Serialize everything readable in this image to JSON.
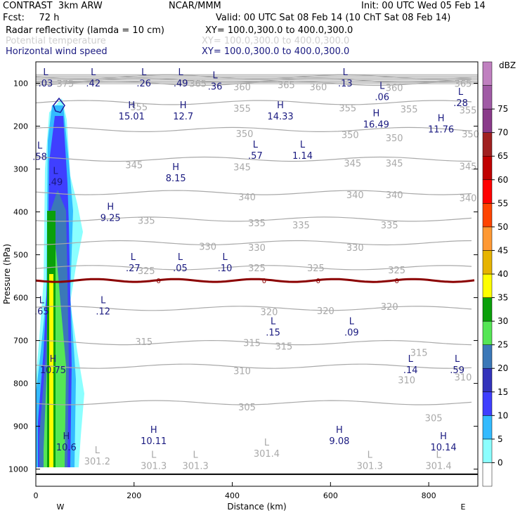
{
  "header": {
    "line1_left": "CONTRAST  3km ARW",
    "line1_mid": "NCAR/MMM",
    "line1_right": "Init: 00 UTC Wed 05 Feb 14",
    "line2_left": "Fcst:     72 h",
    "line2_right": "Valid: 00 UTC Sat 08 Feb 14 (10 ChT Sat 08 Feb 14)",
    "field1_name": "Radar reflectivity (lamda = 10 cm)",
    "field1_xy": "XY= 100.0,300.0 to 400.0,300.0",
    "field2_name": "Potential temperature",
    "field2_xy": "XY= 100.0,300.0 to 400.0,300.0",
    "field3_name": "Horizontal wind speed",
    "field3_xy": "XY= 100.0,300.0 to 400.0,300.0"
  },
  "colors": {
    "theta": "#a9a9a9",
    "wind": "#1a1a80",
    "freezing_line": "#8b0000"
  },
  "chart_data": {
    "type": "contour-cross-section",
    "xlabel": "Distance (km)",
    "ylabel": "Pressure (hPa)",
    "xlim": [
      0,
      900
    ],
    "ylim": [
      1040,
      50
    ],
    "x_ticks": [
      0,
      200,
      400,
      600,
      800
    ],
    "y_ticks": [
      100,
      200,
      300,
      400,
      500,
      600,
      700,
      800,
      900,
      1000
    ],
    "x_end_labels": {
      "left": "W",
      "right": "E"
    },
    "colorbar": {
      "unit": "dBZ",
      "levels": [
        0,
        5,
        10,
        15,
        20,
        25,
        30,
        35,
        40,
        45,
        50,
        55,
        60,
        65,
        70,
        75
      ],
      "colors": [
        "#ffffff",
        "#8bffff",
        "#33bbff",
        "#3f3fff",
        "#3333bb",
        "#3b78b8",
        "#55e655",
        "#0aa00a",
        "#ffff00",
        "#e6b400",
        "#ff9933",
        "#ff4400",
        "#ff0000",
        "#c00000",
        "#a02020",
        "#8a3a8a",
        "#a05aa5",
        "#c080c0"
      ]
    },
    "theta_contours": [
      {
        "label": "375",
        "p": 85
      },
      {
        "label": "365",
        "p": 93
      },
      {
        "label": "360",
        "p": 100
      },
      {
        "label": "355",
        "p": 145
      },
      {
        "label": "350",
        "p": 208
      },
      {
        "label": "345",
        "p": 277
      },
      {
        "label": "340",
        "p": 355
      },
      {
        "label": "335",
        "p": 417
      },
      {
        "label": "330",
        "p": 472
      },
      {
        "label": "325",
        "p": 530
      },
      {
        "label": "320",
        "p": 625
      },
      {
        "label": "315",
        "p": 705
      },
      {
        "label": "310",
        "p": 760
      },
      {
        "label": "305",
        "p": 845
      }
    ],
    "theta_labels": [
      {
        "text": "375",
        "x": 60,
        "p": 100
      },
      {
        "text": "365",
        "x": 330,
        "p": 100
      },
      {
        "text": "360",
        "x": 420,
        "p": 108
      },
      {
        "text": "365",
        "x": 510,
        "p": 103
      },
      {
        "text": "360",
        "x": 575,
        "p": 108
      },
      {
        "text": "360",
        "x": 730,
        "p": 110
      },
      {
        "text": "365",
        "x": 870,
        "p": 100
      },
      {
        "text": "355",
        "x": 210,
        "p": 155
      },
      {
        "text": "355",
        "x": 420,
        "p": 158
      },
      {
        "text": "355",
        "x": 635,
        "p": 157
      },
      {
        "text": "355",
        "x": 760,
        "p": 160
      },
      {
        "text": "355",
        "x": 880,
        "p": 162
      },
      {
        "text": "350",
        "x": 425,
        "p": 217
      },
      {
        "text": "350",
        "x": 640,
        "p": 220
      },
      {
        "text": "350",
        "x": 730,
        "p": 227
      },
      {
        "text": "350",
        "x": 885,
        "p": 218
      },
      {
        "text": "345",
        "x": 200,
        "p": 290
      },
      {
        "text": "345",
        "x": 420,
        "p": 295
      },
      {
        "text": "345",
        "x": 645,
        "p": 286
      },
      {
        "text": "345",
        "x": 730,
        "p": 286
      },
      {
        "text": "345",
        "x": 880,
        "p": 293
      },
      {
        "text": "340",
        "x": 430,
        "p": 365
      },
      {
        "text": "340",
        "x": 650,
        "p": 360
      },
      {
        "text": "340",
        "x": 730,
        "p": 360
      },
      {
        "text": "340",
        "x": 880,
        "p": 367
      },
      {
        "text": "335",
        "x": 225,
        "p": 420
      },
      {
        "text": "335",
        "x": 450,
        "p": 425
      },
      {
        "text": "335",
        "x": 540,
        "p": 430
      },
      {
        "text": "335",
        "x": 720,
        "p": 430
      },
      {
        "text": "330",
        "x": 350,
        "p": 480
      },
      {
        "text": "330",
        "x": 450,
        "p": 483
      },
      {
        "text": "330",
        "x": 650,
        "p": 483
      },
      {
        "text": "325",
        "x": 225,
        "p": 537
      },
      {
        "text": "325",
        "x": 450,
        "p": 530
      },
      {
        "text": "325",
        "x": 570,
        "p": 530
      },
      {
        "text": "325",
        "x": 735,
        "p": 535
      },
      {
        "text": "320",
        "x": 475,
        "p": 633
      },
      {
        "text": "320",
        "x": 590,
        "p": 630
      },
      {
        "text": "320",
        "x": 720,
        "p": 620
      },
      {
        "text": "315",
        "x": 220,
        "p": 702
      },
      {
        "text": "315",
        "x": 440,
        "p": 705
      },
      {
        "text": "315",
        "x": 505,
        "p": 713
      },
      {
        "text": "315",
        "x": 780,
        "p": 728
      },
      {
        "text": "310",
        "x": 420,
        "p": 770
      },
      {
        "text": "310",
        "x": 755,
        "p": 792
      },
      {
        "text": "310",
        "x": 870,
        "p": 785
      },
      {
        "text": "305",
        "x": 430,
        "p": 855
      },
      {
        "text": "305",
        "x": 810,
        "p": 880
      }
    ],
    "theta_extrema": [
      {
        "type": "L",
        "value": "301.2",
        "x": 125,
        "p": 978
      },
      {
        "type": "L",
        "value": "301.3",
        "x": 240,
        "p": 988
      },
      {
        "type": "L",
        "value": "301.3",
        "x": 325,
        "p": 988
      },
      {
        "type": "L",
        "value": "301.4",
        "x": 470,
        "p": 960
      },
      {
        "type": "L",
        "value": "301.3",
        "x": 680,
        "p": 988
      },
      {
        "type": "L",
        "value": "301.4",
        "x": 820,
        "p": 988
      }
    ],
    "wind_extrema": [
      {
        "type": "L",
        "value": ".03",
        "x": 20,
        "p": 96
      },
      {
        "type": "L",
        "value": ".42",
        "x": 117,
        "p": 96
      },
      {
        "type": "L",
        "value": ".26",
        "x": 220,
        "p": 96
      },
      {
        "type": "L",
        "value": ".49",
        "x": 295,
        "p": 96
      },
      {
        "type": "L",
        "value": ".36",
        "x": 365,
        "p": 103
      },
      {
        "type": "L",
        "value": ".13",
        "x": 630,
        "p": 96
      },
      {
        "type": "L",
        "value": ".06",
        "x": 705,
        "p": 128
      },
      {
        "type": "L",
        "value": ".28",
        "x": 865,
        "p": 142
      },
      {
        "type": "H",
        "value": "15.01",
        "x": 195,
        "p": 173
      },
      {
        "type": "H",
        "value": "12.7",
        "x": 300,
        "p": 173
      },
      {
        "type": "H",
        "value": "14.33",
        "x": 498,
        "p": 173
      },
      {
        "type": "H",
        "value": "16.49",
        "x": 693,
        "p": 192
      },
      {
        "type": "H",
        "value": "11.76",
        "x": 825,
        "p": 203
      },
      {
        "type": "L",
        "value": ".58",
        "x": 8,
        "p": 267
      },
      {
        "type": "L",
        "value": ".57",
        "x": 447,
        "p": 265
      },
      {
        "type": "L",
        "value": "1.14",
        "x": 543,
        "p": 265
      },
      {
        "type": "L",
        "value": ".49",
        "x": 40,
        "p": 326
      },
      {
        "type": "H",
        "value": "8.15",
        "x": 285,
        "p": 317
      },
      {
        "type": "H",
        "value": "9.25",
        "x": 152,
        "p": 410
      },
      {
        "type": "L",
        "value": ".27",
        "x": 198,
        "p": 527
      },
      {
        "type": "L",
        "value": ".05",
        "x": 294,
        "p": 527
      },
      {
        "type": "L",
        "value": ".10",
        "x": 385,
        "p": 527
      },
      {
        "type": "L",
        "value": ".65",
        "x": 12,
        "p": 628
      },
      {
        "type": "L",
        "value": ".12",
        "x": 137,
        "p": 628
      },
      {
        "type": "L",
        "value": ".15",
        "x": 483,
        "p": 677
      },
      {
        "type": "L",
        "value": ".09",
        "x": 643,
        "p": 677
      },
      {
        "type": "H",
        "value": "10.75",
        "x": 35,
        "p": 765
      },
      {
        "type": "L",
        "value": ".14",
        "x": 763,
        "p": 765
      },
      {
        "type": "L",
        "value": ".59",
        "x": 858,
        "p": 765
      },
      {
        "type": "H",
        "value": "10.11",
        "x": 240,
        "p": 930
      },
      {
        "type": "H",
        "value": "9.08",
        "x": 618,
        "p": 930
      },
      {
        "type": "H",
        "value": "10.14",
        "x": 830,
        "p": 945
      },
      {
        "type": "H",
        "value": "10.6",
        "x": 62,
        "p": 945
      }
    ],
    "freezing_level": {
      "label": "0",
      "p": 560,
      "label_x": [
        250,
        465,
        575,
        735
      ]
    }
  }
}
